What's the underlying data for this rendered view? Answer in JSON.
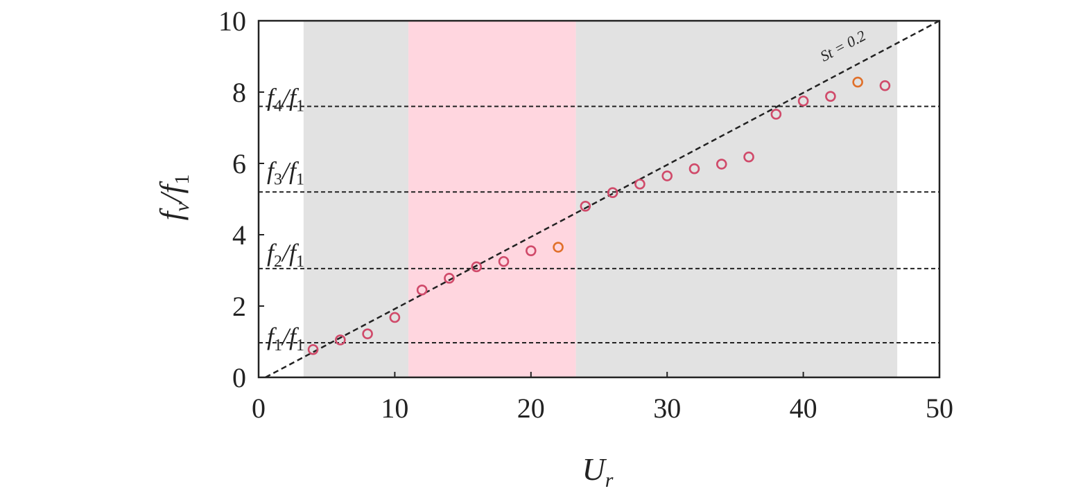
{
  "chart_data": {
    "type": "scatter",
    "xlabel": "U",
    "xlabel_sub": "r",
    "ylabel": "f",
    "ylabel_sub1": "v",
    "ylabel_mid": "/f",
    "ylabel_sub2": "1",
    "xlim": [
      0,
      50
    ],
    "ylim": [
      0,
      10
    ],
    "x_ticks": [
      "0",
      "10",
      "20",
      "30",
      "40",
      "50"
    ],
    "y_ticks": [
      "0",
      "2",
      "4",
      "6",
      "8",
      "10"
    ],
    "grid": false,
    "shaded_regions": [
      {
        "x": [
          3.3,
          11.0
        ],
        "color": "#e2e2e2"
      },
      {
        "x": [
          11.0,
          23.3
        ],
        "color": "#ffd6df"
      },
      {
        "x": [
          23.3,
          46.9
        ],
        "color": "#e2e2e2"
      }
    ],
    "reference_lines": [
      {
        "y": 0.97,
        "label_main": "f",
        "label_sub": "1",
        "label_sep": "/f",
        "label_sub2": "1",
        "label_y": 1.15
      },
      {
        "y": 3.05,
        "label_main": "f",
        "label_sub": "2",
        "label_sep": "/f",
        "label_sub2": "1",
        "label_y": 3.5
      },
      {
        "y": 5.2,
        "label_main": "f",
        "label_sub": "3",
        "label_sep": "/f",
        "label_sub2": "1",
        "label_y": 5.8
      },
      {
        "y": 7.6,
        "label_main": "f",
        "label_sub": "4",
        "label_sep": "/f",
        "label_sub2": "1",
        "label_y": 7.85
      }
    ],
    "strouhal_line": {
      "x": [
        0.5,
        50
      ],
      "y": [
        0,
        10
      ],
      "annotation": "St = 0.2",
      "annotation_x": 41.5,
      "annotation_y": 8.85
    },
    "series": [
      {
        "marker_color": "#d04a6a",
        "points": [
          [
            4,
            0.78
          ],
          [
            6,
            1.05
          ],
          [
            8,
            1.22
          ],
          [
            10,
            1.68
          ],
          [
            12,
            2.45
          ],
          [
            14,
            2.78
          ],
          [
            16,
            3.1
          ],
          [
            18,
            3.25
          ],
          [
            20,
            3.55
          ],
          [
            24,
            4.8
          ],
          [
            26,
            5.18
          ],
          [
            28,
            5.42
          ],
          [
            30,
            5.65
          ],
          [
            32,
            5.85
          ],
          [
            34,
            5.98
          ],
          [
            36,
            6.18
          ],
          [
            38,
            7.38
          ],
          [
            40,
            7.75
          ],
          [
            42,
            7.88
          ],
          [
            46,
            8.18
          ]
        ]
      },
      {
        "marker_color": "#e0702a",
        "points": [
          [
            22,
            3.65
          ],
          [
            44,
            8.28
          ]
        ]
      }
    ]
  }
}
